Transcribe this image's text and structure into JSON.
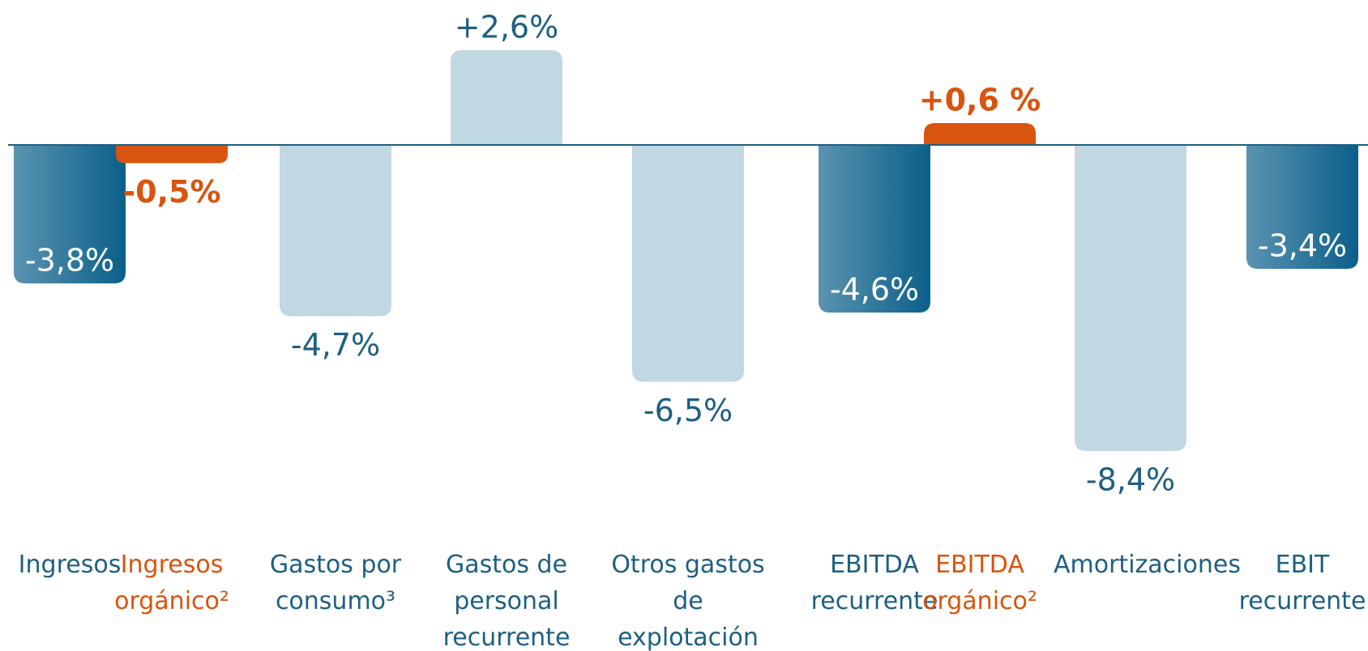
{
  "chart_data": {
    "type": "bar",
    "categories": [
      "Ingresos",
      "Ingresos orgánico²",
      "Gastos por consumo³",
      "Gastos de personal recurrente",
      "Otros gastos de explotación",
      "EBITDA recurrente",
      "EBITDA orgánico²",
      "Amortizaciones",
      "EBIT recurrente"
    ],
    "values": [
      -3.8,
      -0.5,
      -4.7,
      2.6,
      -6.5,
      -4.6,
      0.6,
      -8.4,
      -3.4
    ],
    "value_labels": [
      "-3,8%",
      "-0,5%",
      "-4,7%",
      "+2,6%",
      "-6,5%",
      "-4,6%",
      "+0,6 %",
      "-8,4%",
      "-3,4%"
    ],
    "colors": [
      "#0b5f8a",
      "#d9540f",
      "#c1d8e3",
      "#c1d8e3",
      "#c1d8e3",
      "#0b5f8a",
      "#d9540f",
      "#c1d8e3",
      "#0b5f8a"
    ]
  }
}
